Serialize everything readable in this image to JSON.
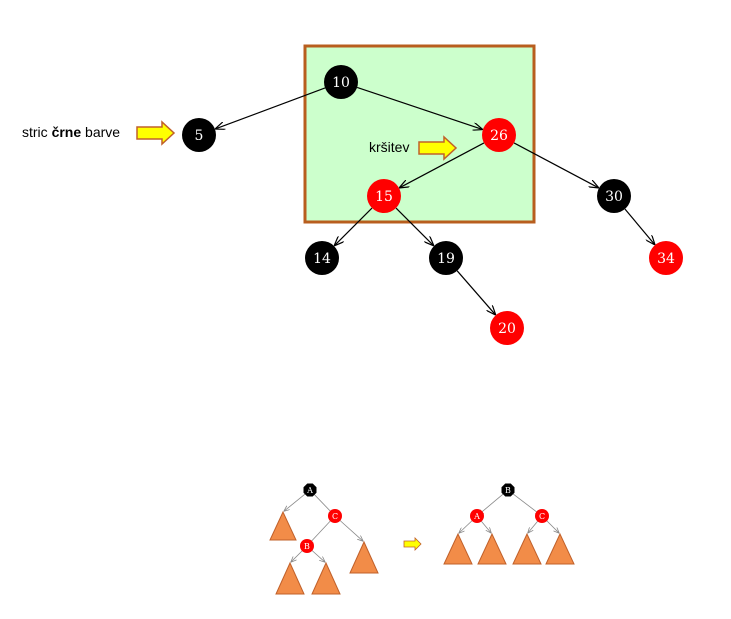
{
  "colors": {
    "highlight_fill": "#ccffcc",
    "highlight_border": "#b85e1e",
    "black_node": "#000000",
    "red_node": "#ff0000",
    "arrow_fill": "#ffff00",
    "arrow_outline": "#c0602a",
    "triangle_fill": "#f28c48",
    "triangle_outline": "#c0602a"
  },
  "main_tree": {
    "nodes": [
      {
        "id": "n10",
        "label": "10",
        "color": "black"
      },
      {
        "id": "n5",
        "label": "5",
        "color": "black"
      },
      {
        "id": "n26",
        "label": "26",
        "color": "red"
      },
      {
        "id": "n15",
        "label": "15",
        "color": "red"
      },
      {
        "id": "n30",
        "label": "30",
        "color": "black"
      },
      {
        "id": "n14",
        "label": "14",
        "color": "black"
      },
      {
        "id": "n19",
        "label": "19",
        "color": "black"
      },
      {
        "id": "n34",
        "label": "34",
        "color": "red"
      },
      {
        "id": "n20",
        "label": "20",
        "color": "red"
      }
    ],
    "edges": [
      [
        "n10",
        "n5"
      ],
      [
        "n10",
        "n26"
      ],
      [
        "n26",
        "n15"
      ],
      [
        "n26",
        "n30"
      ],
      [
        "n15",
        "n14"
      ],
      [
        "n15",
        "n19"
      ],
      [
        "n30",
        "n34"
      ],
      [
        "n19",
        "n20"
      ]
    ]
  },
  "annotations": {
    "uncle_prefix": "stric ",
    "uncle_bold": "črne",
    "uncle_suffix": " barve",
    "crossing": "kršitev"
  },
  "rotation_before": {
    "nodes": [
      {
        "id": "bA",
        "label": "A",
        "color": "black"
      },
      {
        "id": "bC",
        "label": "C",
        "color": "red"
      },
      {
        "id": "bB",
        "label": "B",
        "color": "red"
      }
    ]
  },
  "rotation_after": {
    "nodes": [
      {
        "id": "aB",
        "label": "B",
        "color": "black"
      },
      {
        "id": "aA",
        "label": "A",
        "color": "red"
      },
      {
        "id": "aC",
        "label": "C",
        "color": "red"
      }
    ]
  }
}
